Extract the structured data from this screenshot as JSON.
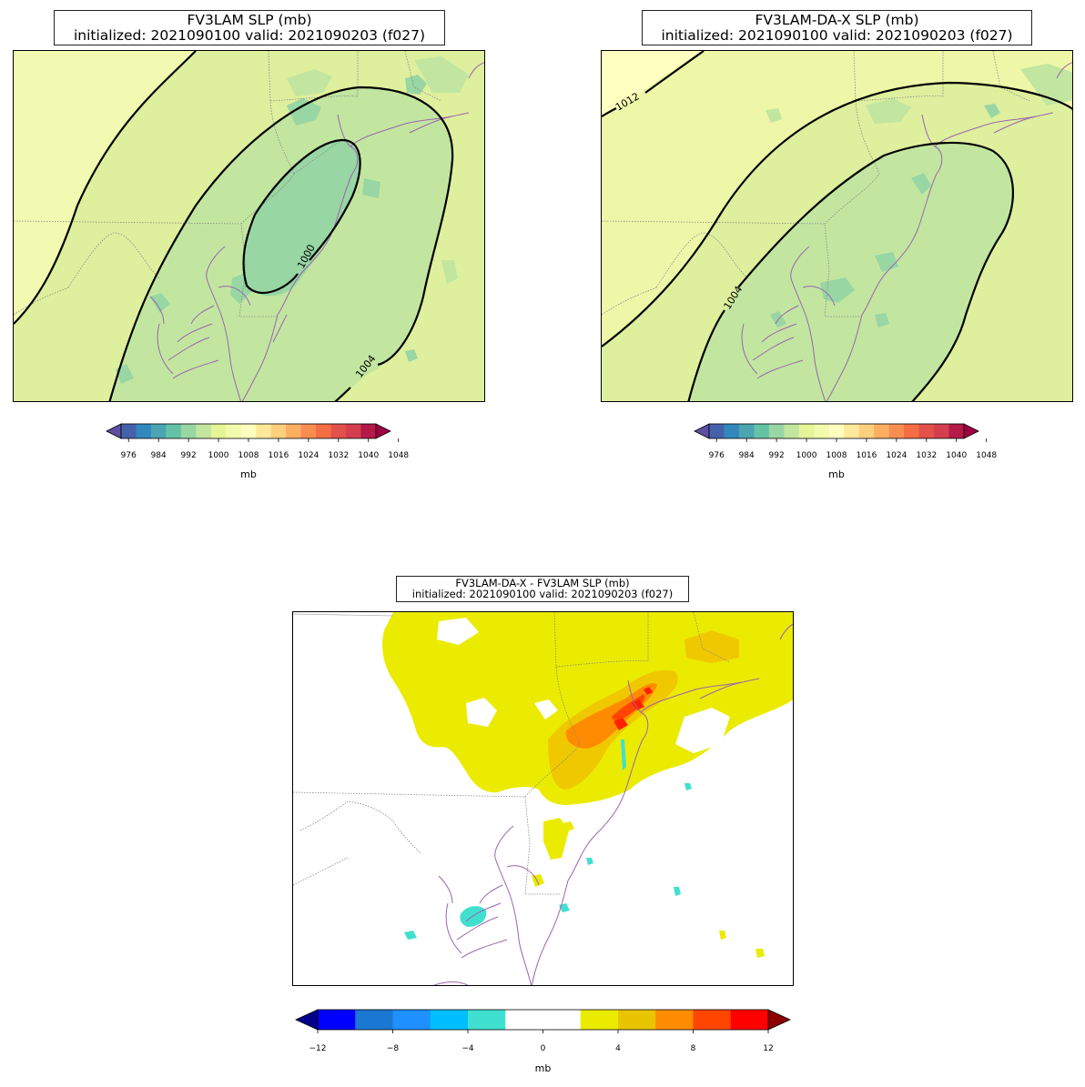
{
  "panels": [
    {
      "title_line1": "FV3LAM SLP (mb)",
      "title_line2": "initialized: 2021090100 valid: 2021090203 (f027)",
      "contour_labels": [
        "1000",
        "1004"
      ]
    },
    {
      "title_line1": "FV3LAM-DA-X SLP (mb)",
      "title_line2": "initialized: 2021090100 valid: 2021090203 (f027)",
      "contour_labels": [
        "1012",
        "1004"
      ]
    },
    {
      "title_line1": "FV3LAM-DA-X - FV3LAM SLP (mb)",
      "title_line2": "initialized: 2021090100 valid: 2021090203 (f027)"
    }
  ],
  "slp_colorbar": {
    "ticks": [
      "976",
      "984",
      "992",
      "1000",
      "1008",
      "1016",
      "1024",
      "1032",
      "1040",
      "1048"
    ],
    "label": "mb",
    "colors": [
      "#5e4fa2",
      "#4661ab",
      "#3288bd",
      "#4ca5b1",
      "#66c2a5",
      "#98d6a4",
      "#c2e6a0",
      "#e6f598",
      "#f2faac",
      "#ffffbf",
      "#fee89a",
      "#fed07e",
      "#fdae61",
      "#f88d52",
      "#f46d43",
      "#e2514a",
      "#d53e4f",
      "#b41947",
      "#9e0142"
    ]
  },
  "diff_colorbar": {
    "ticks": [
      "−12",
      "−8",
      "−4",
      "0",
      "4",
      "8",
      "12"
    ],
    "label": "mb",
    "colors": [
      "#0000ff",
      "#1a77d2",
      "#1e90ff",
      "#00bfff",
      "#40e0d0",
      "#ffffff",
      "#ffffff",
      "#ebeb00",
      "#e8c500",
      "#ff8c00",
      "#ff4500",
      "#ff0000"
    ],
    "extend_colors": [
      "#00008b",
      "#8b0000"
    ]
  },
  "colors": {
    "fill_outer": "#eef7a8",
    "fill_mid": "#deef9d",
    "fill_inner": "#c2e6a0",
    "fill_core": "#98d6a4",
    "fill_far": "#f7fbb6",
    "coast": "#9b64b0",
    "border": "#888888",
    "diff_yellow": "#ebeb00",
    "diff_gold": "#f0c800",
    "diff_orange": "#ff8c00",
    "diff_red": "#ff2000",
    "diff_cyan": "#40e0d0"
  }
}
